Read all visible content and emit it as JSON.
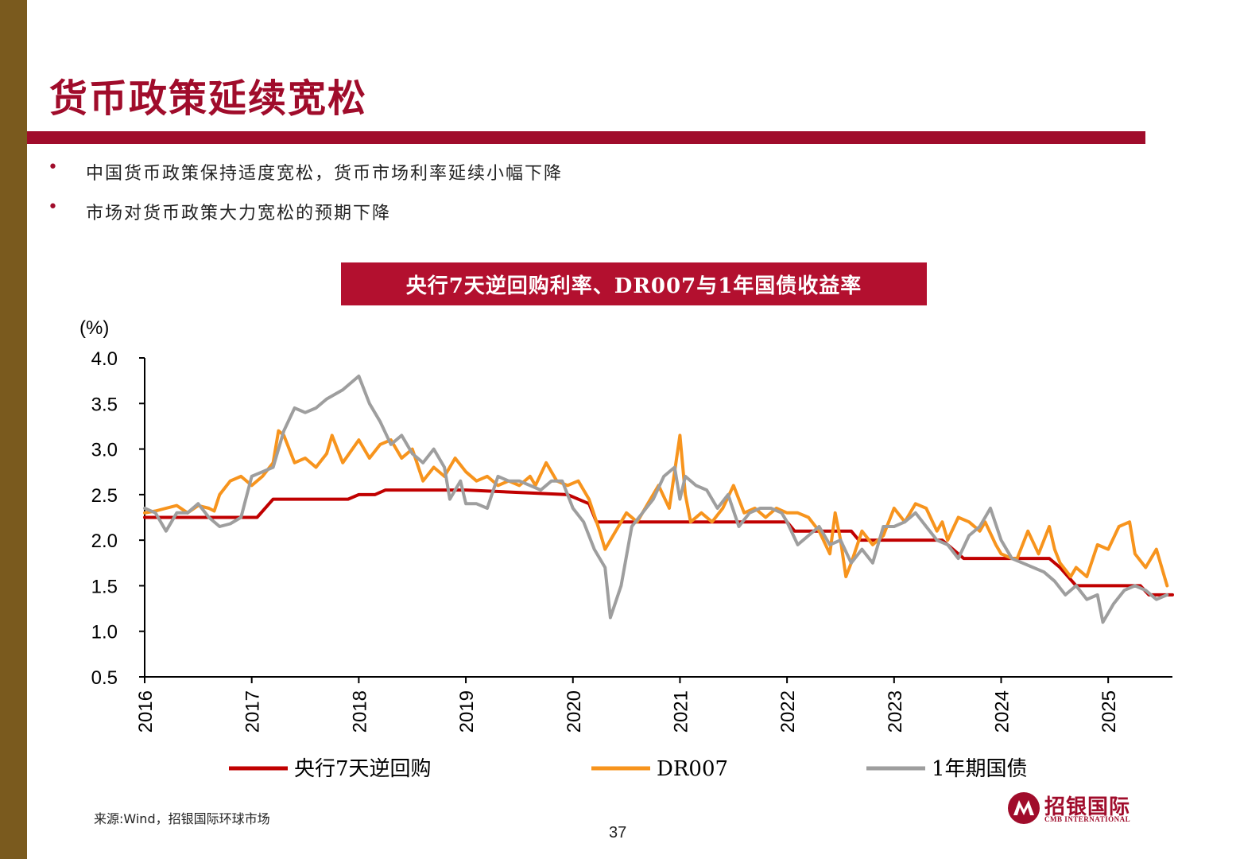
{
  "header": {
    "title": "货币政策延续宽松"
  },
  "bullets": [
    "中国货币政策保持适度宽松，货币市场利率延续小幅下降",
    "市场对货币政策大力宽松的预期下降"
  ],
  "bullet_symbol": "•",
  "colors": {
    "brand": "#a00c2b",
    "left_bar": "#7a5a1e",
    "banner": "#b3102f"
  },
  "chart_data": {
    "type": "line",
    "title": "央行7天逆回购利率、DR007与1年国债收益率",
    "ylabel": "(%)",
    "ylim": [
      0.5,
      4.0
    ],
    "yticks": [
      "0.5",
      "1.0",
      "1.5",
      "2.0",
      "2.5",
      "3.0",
      "3.5",
      "4.0"
    ],
    "xlim": [
      2016.0,
      2025.6
    ],
    "xticks": [
      "2016",
      "2017",
      "2018",
      "2019",
      "2020",
      "2021",
      "2022",
      "2023",
      "2024",
      "2025"
    ],
    "grid": false,
    "legend": "bottom",
    "series": [
      {
        "name": "央行7天逆回购",
        "color": "#c00000",
        "points": [
          [
            2016.0,
            2.25
          ],
          [
            2017.0,
            2.25
          ],
          [
            2017.05,
            2.25
          ],
          [
            2017.2,
            2.45
          ],
          [
            2017.9,
            2.45
          ],
          [
            2018.0,
            2.5
          ],
          [
            2018.15,
            2.5
          ],
          [
            2018.25,
            2.55
          ],
          [
            2019.0,
            2.55
          ],
          [
            2019.95,
            2.5
          ],
          [
            2020.15,
            2.4
          ],
          [
            2020.22,
            2.2
          ],
          [
            2020.4,
            2.2
          ],
          [
            2021.0,
            2.2
          ],
          [
            2022.0,
            2.2
          ],
          [
            2022.07,
            2.1
          ],
          [
            2022.6,
            2.1
          ],
          [
            2022.67,
            2.0
          ],
          [
            2023.45,
            2.0
          ],
          [
            2023.55,
            1.9
          ],
          [
            2023.65,
            1.8
          ],
          [
            2024.45,
            1.8
          ],
          [
            2024.55,
            1.7
          ],
          [
            2024.7,
            1.5
          ],
          [
            2025.3,
            1.5
          ],
          [
            2025.38,
            1.4
          ],
          [
            2025.6,
            1.4
          ]
        ]
      },
      {
        "name": "DR007",
        "color": "#f7941d",
        "points": [
          [
            2016.0,
            2.3
          ],
          [
            2016.1,
            2.32
          ],
          [
            2016.2,
            2.35
          ],
          [
            2016.3,
            2.38
          ],
          [
            2016.4,
            2.3
          ],
          [
            2016.5,
            2.38
          ],
          [
            2016.6,
            2.35
          ],
          [
            2016.65,
            2.32
          ],
          [
            2016.7,
            2.5
          ],
          [
            2016.8,
            2.65
          ],
          [
            2016.9,
            2.7
          ],
          [
            2017.0,
            2.6
          ],
          [
            2017.1,
            2.7
          ],
          [
            2017.2,
            2.85
          ],
          [
            2017.25,
            3.2
          ],
          [
            2017.3,
            3.15
          ],
          [
            2017.4,
            2.85
          ],
          [
            2017.5,
            2.9
          ],
          [
            2017.6,
            2.8
          ],
          [
            2017.7,
            2.95
          ],
          [
            2017.75,
            3.15
          ],
          [
            2017.85,
            2.85
          ],
          [
            2018.0,
            3.1
          ],
          [
            2018.1,
            2.9
          ],
          [
            2018.2,
            3.05
          ],
          [
            2018.3,
            3.1
          ],
          [
            2018.4,
            2.9
          ],
          [
            2018.5,
            3.0
          ],
          [
            2018.6,
            2.65
          ],
          [
            2018.7,
            2.8
          ],
          [
            2018.8,
            2.7
          ],
          [
            2018.9,
            2.9
          ],
          [
            2019.0,
            2.75
          ],
          [
            2019.1,
            2.65
          ],
          [
            2019.2,
            2.7
          ],
          [
            2019.3,
            2.6
          ],
          [
            2019.4,
            2.65
          ],
          [
            2019.5,
            2.6
          ],
          [
            2019.6,
            2.7
          ],
          [
            2019.65,
            2.6
          ],
          [
            2019.75,
            2.85
          ],
          [
            2019.85,
            2.65
          ],
          [
            2019.95,
            2.6
          ],
          [
            2020.05,
            2.65
          ],
          [
            2020.15,
            2.45
          ],
          [
            2020.25,
            2.1
          ],
          [
            2020.3,
            1.9
          ],
          [
            2020.4,
            2.1
          ],
          [
            2020.5,
            2.3
          ],
          [
            2020.6,
            2.2
          ],
          [
            2020.7,
            2.4
          ],
          [
            2020.8,
            2.6
          ],
          [
            2020.9,
            2.35
          ],
          [
            2021.0,
            3.15
          ],
          [
            2021.05,
            2.5
          ],
          [
            2021.1,
            2.2
          ],
          [
            2021.2,
            2.3
          ],
          [
            2021.3,
            2.2
          ],
          [
            2021.4,
            2.35
          ],
          [
            2021.5,
            2.6
          ],
          [
            2021.6,
            2.3
          ],
          [
            2021.7,
            2.35
          ],
          [
            2021.8,
            2.25
          ],
          [
            2021.9,
            2.35
          ],
          [
            2022.0,
            2.3
          ],
          [
            2022.1,
            2.3
          ],
          [
            2022.2,
            2.25
          ],
          [
            2022.3,
            2.1
          ],
          [
            2022.4,
            1.85
          ],
          [
            2022.45,
            2.3
          ],
          [
            2022.5,
            2.0
          ],
          [
            2022.55,
            1.6
          ],
          [
            2022.6,
            1.75
          ],
          [
            2022.7,
            2.1
          ],
          [
            2022.8,
            1.95
          ],
          [
            2022.9,
            2.05
          ],
          [
            2023.0,
            2.35
          ],
          [
            2023.1,
            2.2
          ],
          [
            2023.2,
            2.4
          ],
          [
            2023.3,
            2.35
          ],
          [
            2023.4,
            2.1
          ],
          [
            2023.45,
            2.2
          ],
          [
            2023.5,
            2.0
          ],
          [
            2023.6,
            2.25
          ],
          [
            2023.7,
            2.2
          ],
          [
            2023.8,
            2.1
          ],
          [
            2023.85,
            2.2
          ],
          [
            2023.95,
            1.95
          ],
          [
            2024.0,
            1.85
          ],
          [
            2024.1,
            1.8
          ],
          [
            2024.15,
            1.8
          ],
          [
            2024.25,
            2.1
          ],
          [
            2024.35,
            1.85
          ],
          [
            2024.45,
            2.15
          ],
          [
            2024.5,
            1.9
          ],
          [
            2024.55,
            1.75
          ],
          [
            2024.65,
            1.6
          ],
          [
            2024.7,
            1.7
          ],
          [
            2024.8,
            1.6
          ],
          [
            2024.9,
            1.95
          ],
          [
            2025.0,
            1.9
          ],
          [
            2025.1,
            2.15
          ],
          [
            2025.2,
            2.2
          ],
          [
            2025.25,
            1.85
          ],
          [
            2025.35,
            1.7
          ],
          [
            2025.45,
            1.9
          ],
          [
            2025.55,
            1.5
          ]
        ]
      },
      {
        "name": "1年期国债",
        "color": "#9e9e9e",
        "points": [
          [
            2016.0,
            2.35
          ],
          [
            2016.1,
            2.3
          ],
          [
            2016.2,
            2.1
          ],
          [
            2016.3,
            2.3
          ],
          [
            2016.4,
            2.3
          ],
          [
            2016.5,
            2.4
          ],
          [
            2016.6,
            2.25
          ],
          [
            2016.7,
            2.15
          ],
          [
            2016.8,
            2.18
          ],
          [
            2016.9,
            2.25
          ],
          [
            2017.0,
            2.7
          ],
          [
            2017.1,
            2.75
          ],
          [
            2017.2,
            2.8
          ],
          [
            2017.3,
            3.2
          ],
          [
            2017.4,
            3.45
          ],
          [
            2017.5,
            3.4
          ],
          [
            2017.6,
            3.45
          ],
          [
            2017.7,
            3.55
          ],
          [
            2017.85,
            3.65
          ],
          [
            2018.0,
            3.8
          ],
          [
            2018.1,
            3.5
          ],
          [
            2018.2,
            3.3
          ],
          [
            2018.3,
            3.05
          ],
          [
            2018.4,
            3.15
          ],
          [
            2018.5,
            2.95
          ],
          [
            2018.6,
            2.85
          ],
          [
            2018.7,
            3.0
          ],
          [
            2018.8,
            2.8
          ],
          [
            2018.85,
            2.45
          ],
          [
            2018.95,
            2.65
          ],
          [
            2019.0,
            2.4
          ],
          [
            2019.1,
            2.4
          ],
          [
            2019.2,
            2.35
          ],
          [
            2019.3,
            2.7
          ],
          [
            2019.4,
            2.65
          ],
          [
            2019.5,
            2.65
          ],
          [
            2019.6,
            2.6
          ],
          [
            2019.7,
            2.55
          ],
          [
            2019.8,
            2.65
          ],
          [
            2019.9,
            2.65
          ],
          [
            2020.0,
            2.35
          ],
          [
            2020.1,
            2.2
          ],
          [
            2020.2,
            1.9
          ],
          [
            2020.3,
            1.7
          ],
          [
            2020.35,
            1.15
          ],
          [
            2020.45,
            1.5
          ],
          [
            2020.55,
            2.15
          ],
          [
            2020.65,
            2.3
          ],
          [
            2020.75,
            2.45
          ],
          [
            2020.85,
            2.7
          ],
          [
            2020.95,
            2.8
          ],
          [
            2021.0,
            2.45
          ],
          [
            2021.05,
            2.7
          ],
          [
            2021.15,
            2.6
          ],
          [
            2021.25,
            2.55
          ],
          [
            2021.35,
            2.35
          ],
          [
            2021.45,
            2.5
          ],
          [
            2021.55,
            2.15
          ],
          [
            2021.65,
            2.3
          ],
          [
            2021.75,
            2.35
          ],
          [
            2021.85,
            2.35
          ],
          [
            2021.95,
            2.3
          ],
          [
            2022.0,
            2.2
          ],
          [
            2022.1,
            1.95
          ],
          [
            2022.2,
            2.05
          ],
          [
            2022.3,
            2.15
          ],
          [
            2022.4,
            1.95
          ],
          [
            2022.5,
            2.0
          ],
          [
            2022.6,
            1.75
          ],
          [
            2022.7,
            1.9
          ],
          [
            2022.8,
            1.75
          ],
          [
            2022.9,
            2.15
          ],
          [
            2023.0,
            2.15
          ],
          [
            2023.1,
            2.2
          ],
          [
            2023.2,
            2.3
          ],
          [
            2023.3,
            2.15
          ],
          [
            2023.4,
            2.0
          ],
          [
            2023.5,
            1.95
          ],
          [
            2023.6,
            1.8
          ],
          [
            2023.7,
            2.05
          ],
          [
            2023.8,
            2.15
          ],
          [
            2023.9,
            2.35
          ],
          [
            2024.0,
            2.0
          ],
          [
            2024.1,
            1.8
          ],
          [
            2024.2,
            1.75
          ],
          [
            2024.3,
            1.7
          ],
          [
            2024.4,
            1.65
          ],
          [
            2024.5,
            1.55
          ],
          [
            2024.6,
            1.4
          ],
          [
            2024.7,
            1.5
          ],
          [
            2024.8,
            1.35
          ],
          [
            2024.9,
            1.4
          ],
          [
            2024.95,
            1.1
          ],
          [
            2025.05,
            1.3
          ],
          [
            2025.15,
            1.45
          ],
          [
            2025.25,
            1.5
          ],
          [
            2025.35,
            1.45
          ],
          [
            2025.45,
            1.35
          ],
          [
            2025.55,
            1.4
          ]
        ]
      }
    ]
  },
  "footer": {
    "source": "来源:Wind，招银国际环球市场",
    "page_number": "37",
    "logo_cn": "招银国际",
    "logo_en": "CMB INTERNATIONAL"
  }
}
